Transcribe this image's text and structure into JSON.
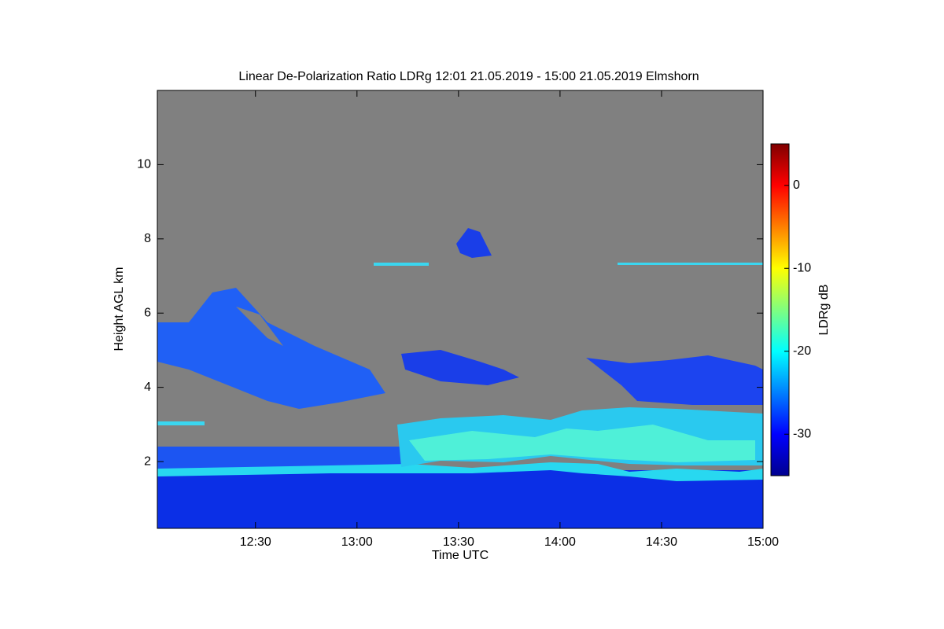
{
  "chart_data": {
    "type": "heatmap",
    "title": "Linear De-Polarization Ratio LDRg   12:01 21.05.2019 - 15:00 21.05.2019 Elmshorn",
    "x_label": "Time UTC",
    "y_label": "Height AGL km",
    "colorbar_label": "LDRg dB",
    "xlim": [
      721,
      900
    ],
    "xticks": [
      {
        "value": 750,
        "label": "12:30"
      },
      {
        "value": 780,
        "label": "13:00"
      },
      {
        "value": 810,
        "label": "13:30"
      },
      {
        "value": 840,
        "label": "14:00"
      },
      {
        "value": 870,
        "label": "14:30"
      },
      {
        "value": 900,
        "label": "15:00"
      }
    ],
    "ylim": [
      0.2,
      12
    ],
    "yticks": [
      2,
      4,
      6,
      8,
      10
    ],
    "clim": [
      -35,
      5
    ],
    "cticks": [
      0,
      -10,
      -20,
      -30
    ],
    "colormap": "jet",
    "missing_color": "#808080"
  }
}
